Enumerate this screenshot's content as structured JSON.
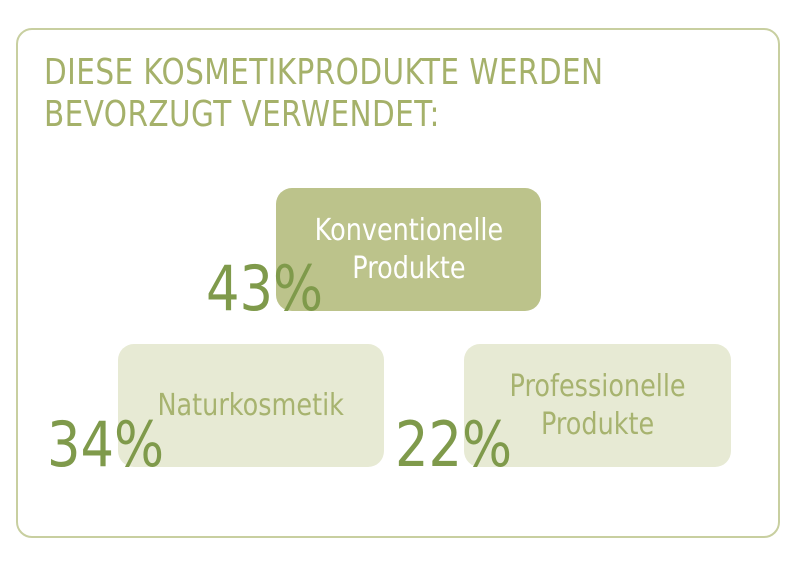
{
  "title_lines": [
    "DIESE KOSMETIKPRODUKTE WERDEN",
    "BEVORZUGT VERWENDET:"
  ],
  "colors": {
    "border": "#c8cfa0",
    "title": "#a5b16a",
    "highlight_box": "#bcc38b",
    "box": "#e7ead4",
    "percent": "#7f9a4b",
    "box_text": "#a7b36f"
  },
  "chart_data": {
    "type": "table",
    "title": "DIESE KOSMETIKPRODUKTE WERDEN BEVORZUGT VERWENDET:",
    "categories": [
      "Konventionelle Produkte",
      "Naturkosmetik",
      "Professionelle Produkte"
    ],
    "values": [
      43,
      34,
      22
    ],
    "unit": "%",
    "items": [
      {
        "label_lines": [
          "Konventionelle",
          "Produkte"
        ],
        "value_label": "43%"
      },
      {
        "label_lines": [
          "Naturkosmetik"
        ],
        "value_label": "34%"
      },
      {
        "label_lines": [
          "Professionelle",
          "Produkte"
        ],
        "value_label": "22%"
      }
    ]
  }
}
